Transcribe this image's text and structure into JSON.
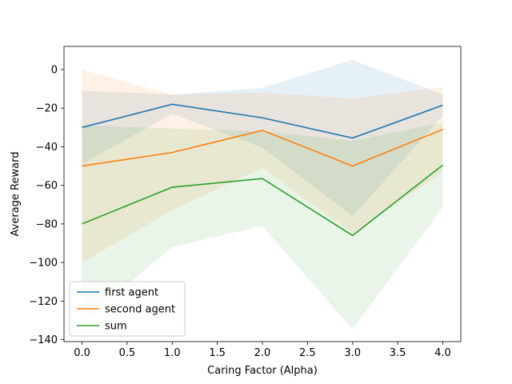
{
  "chart_data": {
    "type": "line",
    "title": "",
    "xlabel": "Caring Factor (Alpha)",
    "ylabel": "Average Reward",
    "xlim": [
      -0.2,
      4.2
    ],
    "ylim": [
      -141,
      12
    ],
    "x_ticks": [
      0.0,
      0.5,
      1.0,
      1.5,
      2.0,
      2.5,
      3.0,
      3.5,
      4.0
    ],
    "x_tick_labels": [
      "0.0",
      "0.5",
      "1.0",
      "1.5",
      "2.0",
      "2.5",
      "3.0",
      "3.5",
      "4.0"
    ],
    "y_ticks": [
      0,
      -20,
      -40,
      -60,
      -80,
      -100,
      -120,
      -140
    ],
    "y_tick_labels": [
      "0",
      "−20",
      "−40",
      "−60",
      "−80",
      "−100",
      "−120",
      "−140"
    ],
    "grid": false,
    "legend_position": "lower-left",
    "x": [
      0,
      1,
      2,
      3,
      4
    ],
    "series": [
      {
        "name": "first agent",
        "color": "#1f77b4",
        "values": [
          -30,
          -18,
          -25,
          -35.5,
          -18.5
        ],
        "band_upper": [
          -11,
          -13,
          -9.5,
          5,
          -13
        ],
        "band_lower": [
          -49,
          -23,
          -40.5,
          -76,
          -24
        ]
      },
      {
        "name": "second agent",
        "color": "#ff7f0e",
        "values": [
          -50,
          -43,
          -31.5,
          -50,
          -31
        ],
        "band_upper": [
          0,
          -13,
          -12,
          -15,
          -9
        ],
        "band_lower": [
          -100,
          -73,
          -51,
          -85,
          -53
        ]
      },
      {
        "name": "sum",
        "color": "#2ca02c",
        "values": [
          -80,
          -61,
          -56.5,
          -86,
          -49.5
        ],
        "band_upper": [
          -29,
          -30.5,
          -32,
          -37,
          -27.5
        ],
        "band_lower": [
          -131,
          -92,
          -81,
          -134.5,
          -71.5
        ]
      }
    ]
  }
}
